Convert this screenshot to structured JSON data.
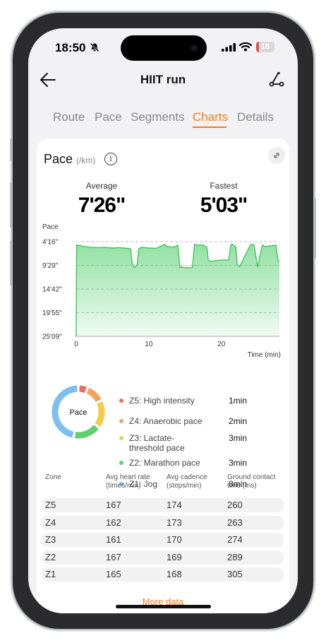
{
  "status_bar": {
    "time": "18:50",
    "battery_level": "16",
    "battery_fraction": 0.16
  },
  "header": {
    "title": "HIIT run"
  },
  "tabs": [
    {
      "label": "Route",
      "active": false
    },
    {
      "label": "Pace",
      "active": false
    },
    {
      "label": "Segments",
      "active": false
    },
    {
      "label": "Charts",
      "active": true
    },
    {
      "label": "Details",
      "active": false
    }
  ],
  "pace_card": {
    "title": "Pace",
    "unit": "(/km)",
    "average_label": "Average",
    "average_value": "7'26\"",
    "fastest_label": "Fastest",
    "fastest_value": "5'03\""
  },
  "chart_data": {
    "type": "area",
    "ylabel": "Pace",
    "xlabel": "Time (min)",
    "y_ticks": [
      "4'16\"",
      "9'29\"",
      "14'42\"",
      "19'55\"",
      "25'09\""
    ],
    "y_tick_values_sec": [
      256,
      569,
      882,
      1195,
      1509
    ],
    "x_ticks": [
      "0",
      "10",
      "20"
    ],
    "x_tick_values": [
      0,
      10,
      20
    ],
    "xlim": [
      0,
      28
    ],
    "ylim_sec": [
      256,
      1509
    ],
    "y_inverted": true,
    "color": "#3cc85a",
    "x": [
      0,
      0.05,
      0.1,
      1,
      2,
      3,
      4,
      5,
      6,
      7,
      7.5,
      7.7,
      8,
      8.4,
      8.6,
      9,
      10,
      11,
      12,
      12.2,
      12.5,
      13.5,
      14,
      14.3,
      14.6,
      15,
      16,
      16.3,
      16.5,
      17,
      17.5,
      18,
      18.2,
      18.5,
      19,
      20,
      21,
      21.3,
      21.5,
      22,
      22.2,
      22.5,
      24,
      24.2,
      24.5,
      25,
      25.5,
      25.7,
      26,
      27,
      27.5,
      27.8,
      28
    ],
    "pace_sec": [
      1509,
      330,
      300,
      320,
      330,
      335,
      330,
      340,
      335,
      345,
      350,
      540,
      600,
      560,
      350,
      330,
      340,
      345,
      300,
      290,
      320,
      330,
      300,
      600,
      590,
      600,
      600,
      290,
      300,
      300,
      300,
      330,
      500,
      520,
      510,
      500,
      500,
      300,
      290,
      330,
      560,
      590,
      300,
      290,
      300,
      590,
      360,
      300,
      320,
      310,
      300,
      500,
      520
    ]
  },
  "zones_legend": [
    {
      "label": "Z5: High intensity",
      "value": "1min",
      "color": "#ef6b5f",
      "minutes": 1
    },
    {
      "label": "Z4: Anaerobic pace",
      "value": "2min",
      "color": "#f5a35c",
      "minutes": 2
    },
    {
      "label": "Z3: Lactate-threshold pace",
      "value": "3min",
      "color": "#f5cc47",
      "minutes": 3
    },
    {
      "label": "Z2: Marathon pace",
      "value": "3min",
      "color": "#5fcf6f",
      "minutes": 3
    },
    {
      "label": "Z1: Jog",
      "value": "8min",
      "color": "#7dbff2",
      "minutes": 8
    }
  ],
  "donut_center_label": "Pace",
  "zone_table": {
    "headers": [
      "Zone",
      "Avg heart rate (times/min)",
      "Avg cadence (steps/min)",
      "Ground contact time (ms)"
    ],
    "rows": [
      [
        "Z5",
        "167",
        "174",
        "260"
      ],
      [
        "Z4",
        "162",
        "173",
        "263"
      ],
      [
        "Z3",
        "161",
        "170",
        "274"
      ],
      [
        "Z2",
        "167",
        "169",
        "289"
      ],
      [
        "Z1",
        "165",
        "168",
        "305"
      ]
    ]
  },
  "more_data_label": "More data"
}
